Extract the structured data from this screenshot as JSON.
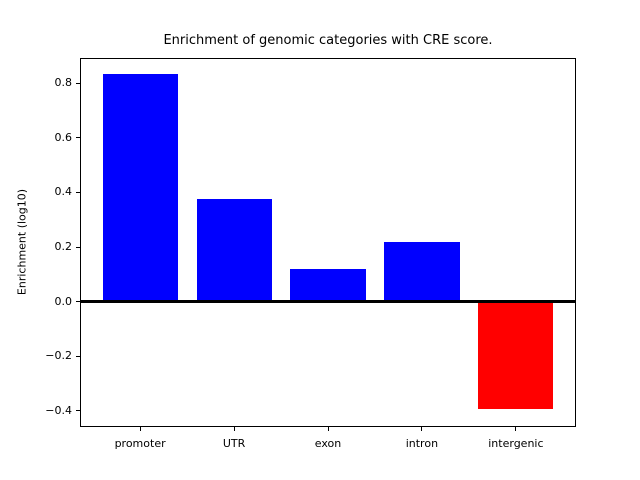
{
  "title": "Enrichment of genomic categories with CRE score.",
  "chart_data": {
    "type": "bar",
    "title": "Enrichment of genomic categories with CRE score.",
    "xlabel": "",
    "ylabel": "Enrichment (log10)",
    "categories": [
      "promoter",
      "UTR",
      "exon",
      "intron",
      "intergenic"
    ],
    "values": [
      0.835,
      0.375,
      0.12,
      0.22,
      -0.395
    ],
    "bar_colors": [
      "#0000ff",
      "#0000ff",
      "#0000ff",
      "#0000ff",
      "#ff0000"
    ],
    "positive_color": "#0000ff",
    "negative_color": "#ff0000",
    "ylim": [
      -0.459,
      0.892
    ],
    "yticks": [
      0.8,
      0.6,
      0.4,
      0.2,
      0.0,
      -0.2,
      -0.4
    ],
    "ytick_labels": [
      "0.8",
      "0.6",
      "0.4",
      "0.2",
      "0.0",
      "−0.2",
      "−0.4"
    ],
    "zero_line": true,
    "grid": false,
    "legend": null
  }
}
